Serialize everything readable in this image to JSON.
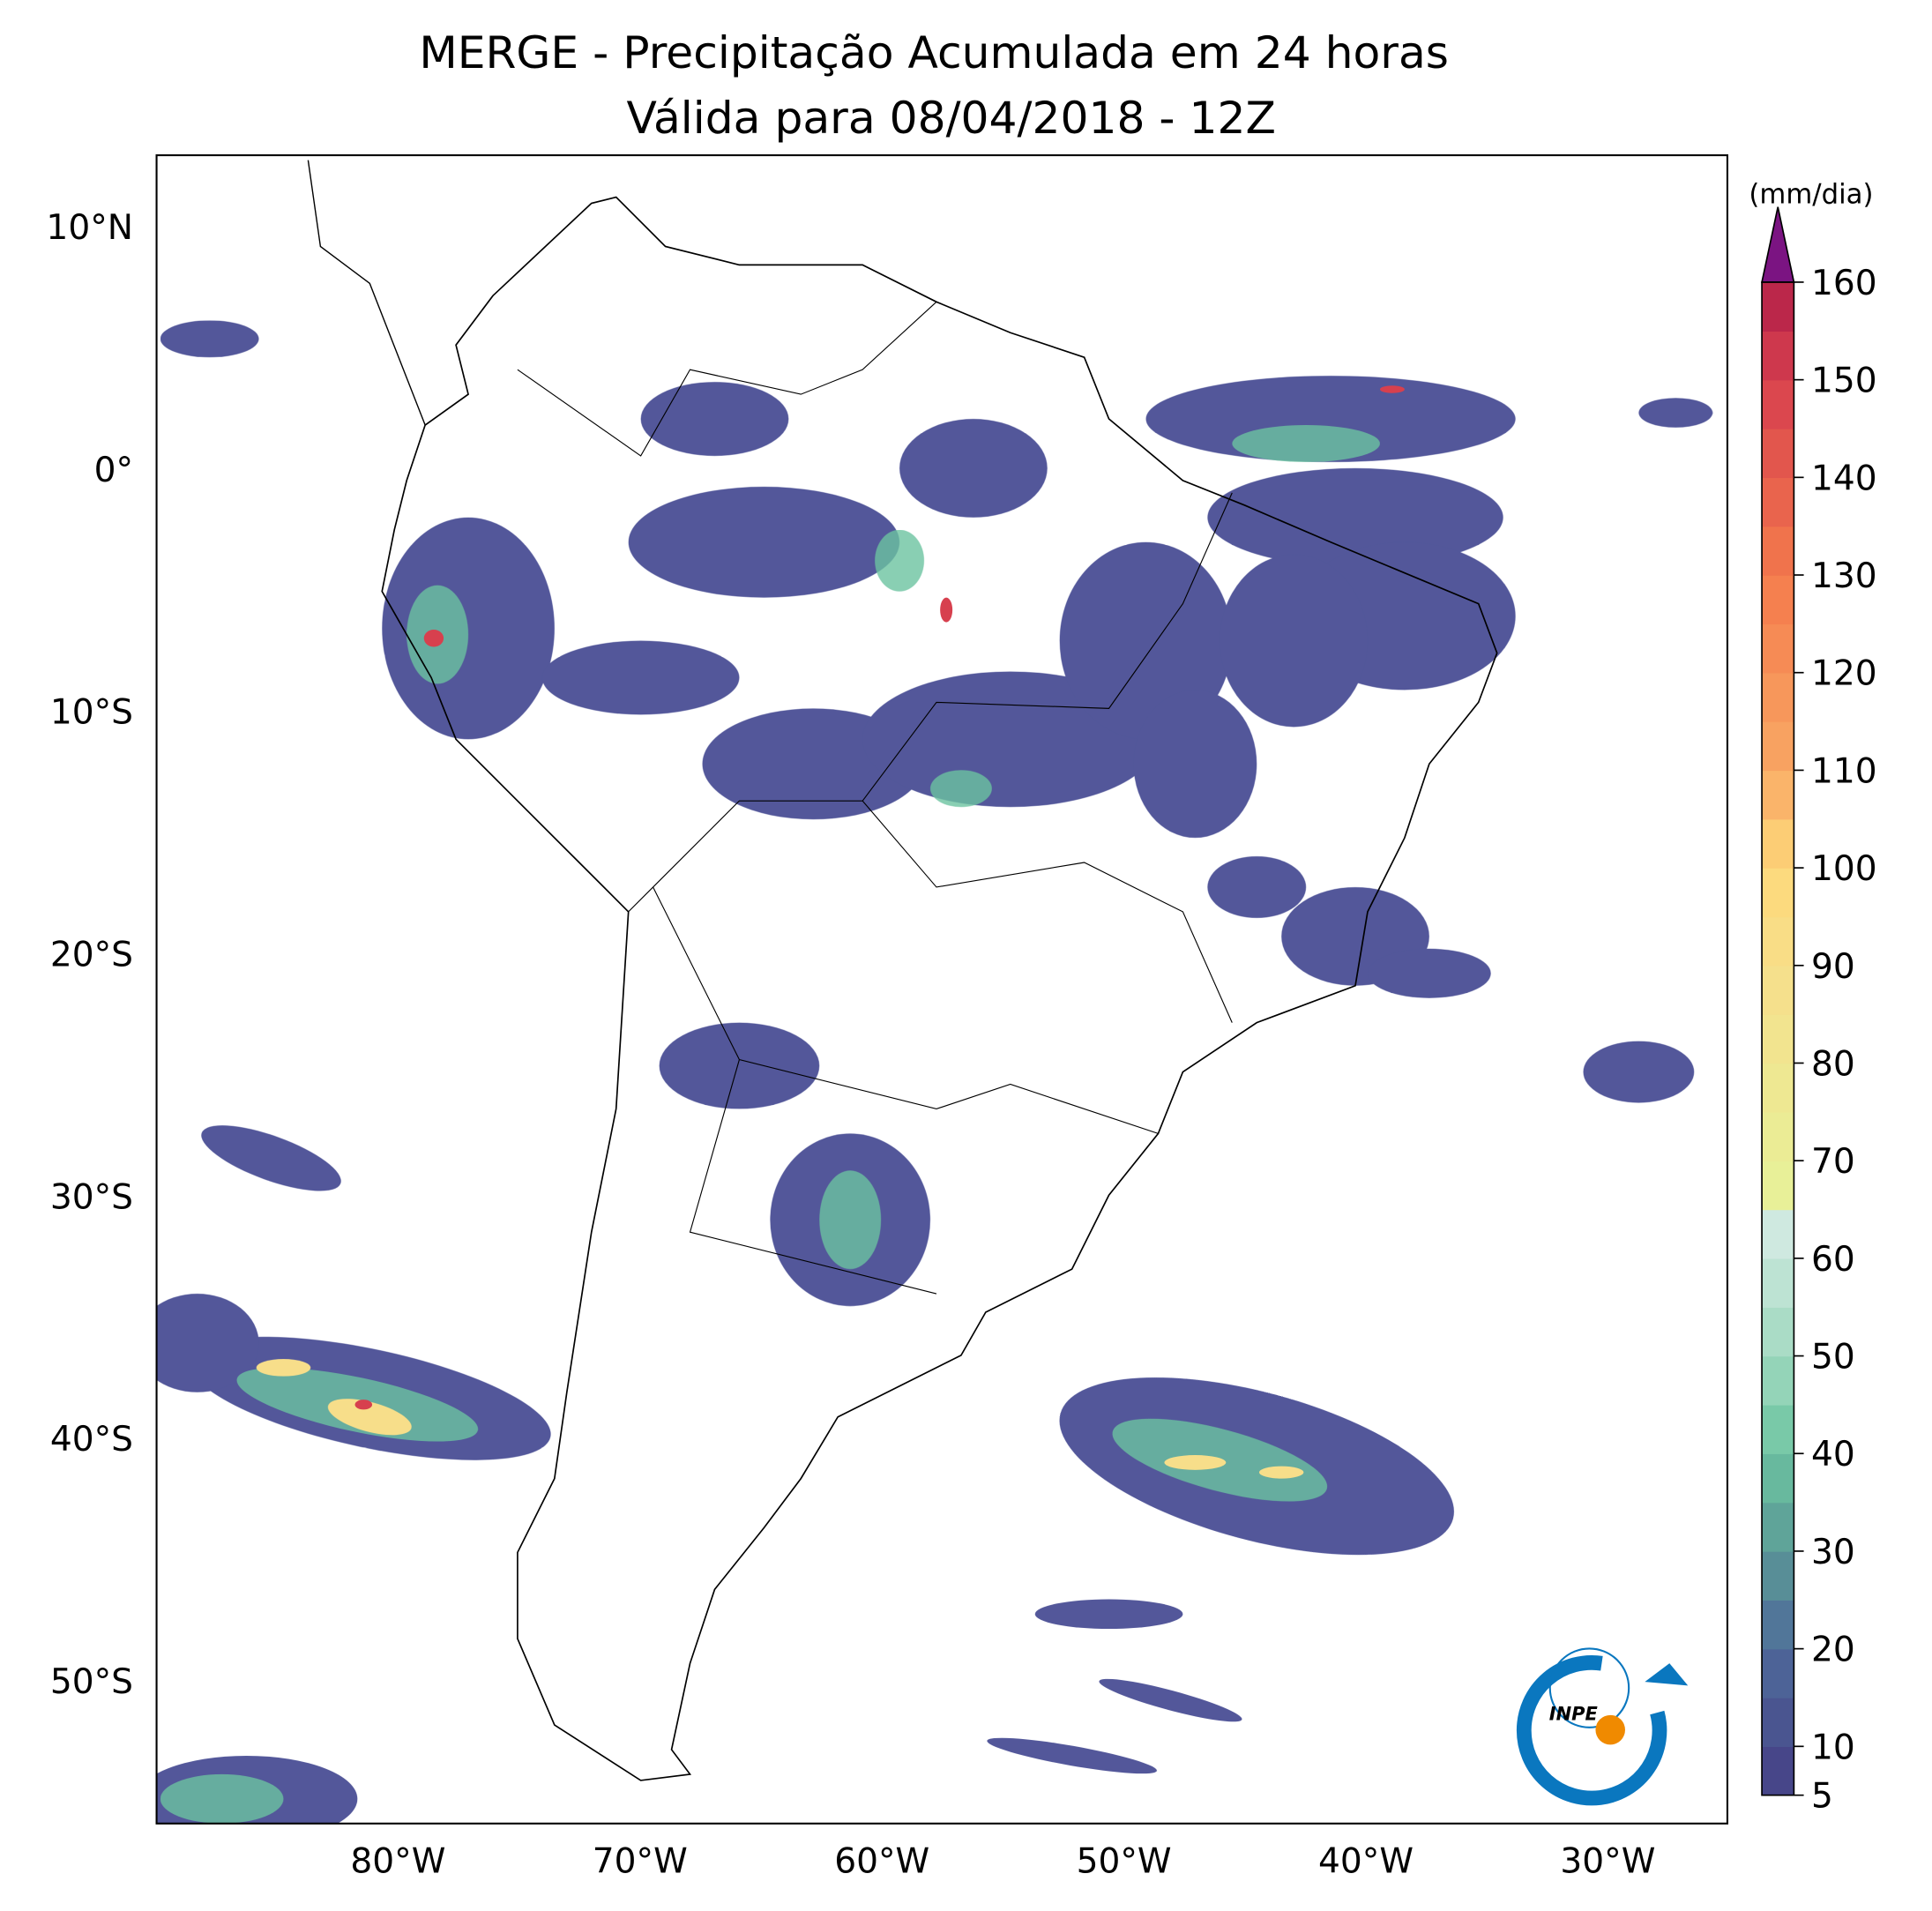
{
  "title": [
    "MERGE - Precipitação Acumulada em 24 horas",
    "Válida para 08/04/2018 - 12Z"
  ],
  "map": {
    "lon_labels": [
      "80°W",
      "70°W",
      "60°W",
      "50°W",
      "40°W",
      "30°W"
    ],
    "lat_labels": [
      "10°N",
      "0°",
      "10°S",
      "20°S",
      "30°S",
      "40°S",
      "50°S"
    ]
  },
  "colorbar": {
    "unit": "(mm/dia)",
    "ticks": [
      5,
      10,
      20,
      30,
      40,
      50,
      60,
      70,
      80,
      90,
      100,
      110,
      120,
      130,
      140,
      150,
      160
    ]
  },
  "logo": "INPE"
}
